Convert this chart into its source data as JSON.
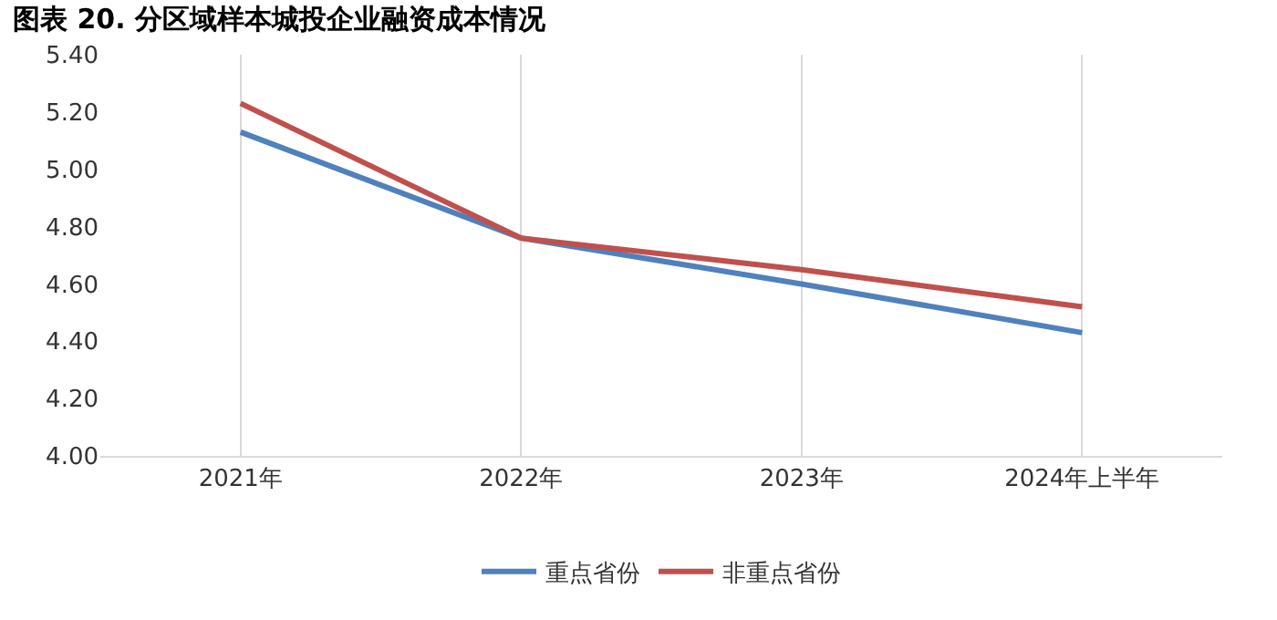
{
  "chart_data": {
    "type": "line",
    "title": "图表 20. 分区域样本城投企业融资成本情况",
    "categories": [
      "2021年",
      "2022年",
      "2023年",
      "2024年上半年"
    ],
    "series": [
      {
        "name": "重点省份",
        "color": "#4f81bd",
        "values": [
          5.13,
          4.76,
          4.6,
          4.43
        ]
      },
      {
        "name": "非重点省份",
        "color": "#c0504d",
        "values": [
          5.23,
          4.76,
          4.65,
          4.52
        ]
      }
    ],
    "ylim": [
      4.0,
      5.4
    ],
    "yticks": [
      {
        "value": 4.0,
        "label": "4.00"
      },
      {
        "value": 4.2,
        "label": "4.20"
      },
      {
        "value": 4.4,
        "label": "4.40"
      },
      {
        "value": 4.6,
        "label": "4.60"
      },
      {
        "value": 4.8,
        "label": "4.80"
      },
      {
        "value": 5.0,
        "label": "5.00"
      },
      {
        "value": 5.2,
        "label": "5.20"
      },
      {
        "value": 5.4,
        "label": "5.40"
      }
    ],
    "grid": "x",
    "legend": "bottom",
    "marker": "none",
    "line_style": "solid"
  }
}
